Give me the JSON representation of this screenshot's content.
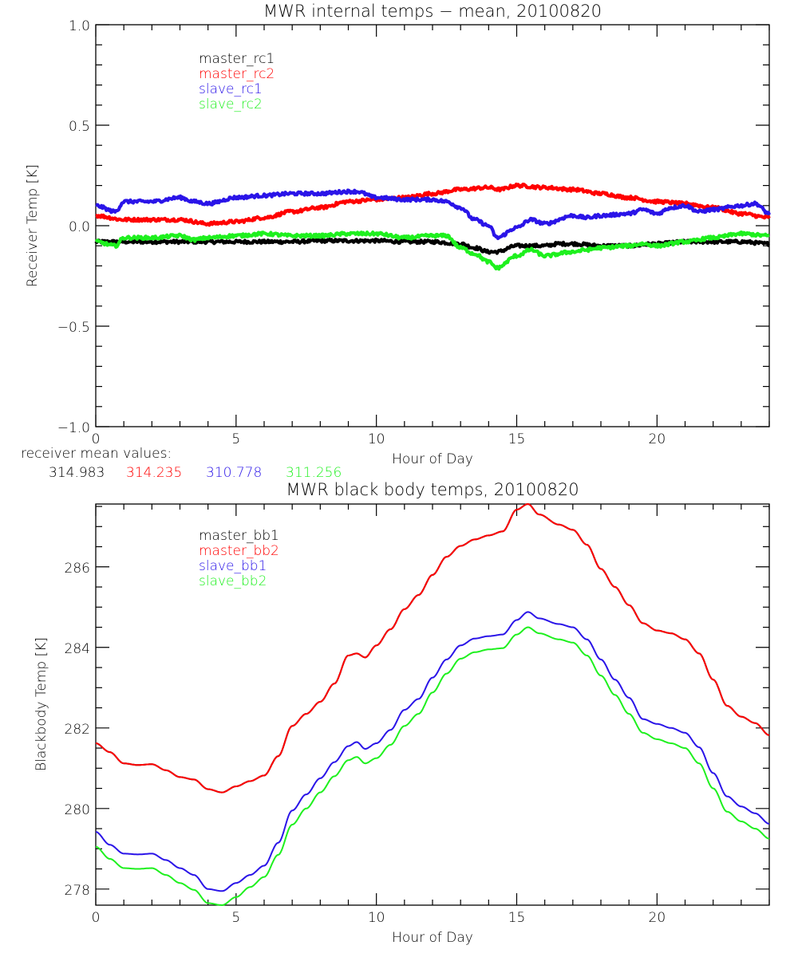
{
  "chart_data": [
    {
      "type": "line",
      "title": "MWR internal temps − mean, 20100820",
      "xlabel": "Hour of Day",
      "ylabel": "Receiver Temp [K]",
      "xlim": [
        0,
        24
      ],
      "ylim": [
        -1.0,
        1.0
      ],
      "xticks": [
        "0",
        "5",
        "10",
        "15",
        "20"
      ],
      "xtick_values": [
        0,
        5,
        10,
        15,
        20
      ],
      "yticks": [
        "−1.0",
        "−0.5",
        "0.0",
        "0.5",
        "1.0"
      ],
      "ytick_values": [
        -1.0,
        -0.5,
        0.0,
        0.5,
        1.0
      ],
      "grid": false,
      "legend_position": "top-left",
      "noise": 0.008,
      "series": [
        {
          "name": "master_rc1",
          "color": "#000000",
          "x": [
            0,
            1,
            2,
            3,
            4,
            5,
            6,
            7,
            8,
            9,
            10,
            11,
            12,
            13,
            13.5,
            14,
            14.3,
            15,
            16,
            16.5,
            17,
            18,
            19,
            20,
            21,
            22,
            23,
            24
          ],
          "y": [
            -0.08,
            -0.08,
            -0.08,
            -0.08,
            -0.08,
            -0.08,
            -0.08,
            -0.08,
            -0.075,
            -0.075,
            -0.075,
            -0.08,
            -0.08,
            -0.09,
            -0.11,
            -0.13,
            -0.13,
            -0.1,
            -0.1,
            -0.09,
            -0.09,
            -0.1,
            -0.1,
            -0.09,
            -0.08,
            -0.08,
            -0.08,
            -0.09
          ]
        },
        {
          "name": "master_rc2",
          "color": "#ff0000",
          "x": [
            0,
            1,
            2,
            3,
            4,
            5,
            6,
            7,
            8,
            9,
            10,
            11,
            12,
            13,
            14,
            14.4,
            15,
            16,
            17,
            18,
            19,
            20,
            21,
            22,
            23,
            24
          ],
          "y": [
            0.05,
            0.03,
            0.03,
            0.03,
            0.01,
            0.02,
            0.04,
            0.07,
            0.09,
            0.12,
            0.13,
            0.14,
            0.16,
            0.18,
            0.19,
            0.18,
            0.2,
            0.19,
            0.18,
            0.16,
            0.14,
            0.12,
            0.11,
            0.09,
            0.06,
            0.04
          ]
        },
        {
          "name": "slave_rc1",
          "color": "#2a14e8",
          "x": [
            0,
            0.7,
            1,
            2,
            3,
            3.5,
            4,
            5,
            6,
            7,
            8,
            9,
            9.3,
            10,
            11,
            12,
            12.5,
            13,
            13.5,
            14,
            14.3,
            15,
            15.5,
            16,
            17,
            17.5,
            18,
            19,
            19.5,
            20,
            20.5,
            21,
            21.5,
            22,
            23,
            23.5,
            24
          ],
          "y": [
            0.1,
            0.07,
            0.12,
            0.12,
            0.14,
            0.12,
            0.11,
            0.14,
            0.15,
            0.16,
            0.16,
            0.17,
            0.17,
            0.14,
            0.13,
            0.13,
            0.12,
            0.09,
            0.03,
            0.0,
            -0.06,
            -0.01,
            0.03,
            0.01,
            0.05,
            0.04,
            0.05,
            0.06,
            0.08,
            0.06,
            0.09,
            0.1,
            0.07,
            0.08,
            0.1,
            0.11,
            0.06
          ]
        },
        {
          "name": "slave_rc2",
          "color": "#1ef01e",
          "x": [
            0,
            0.7,
            1,
            2,
            3,
            3.5,
            4,
            5,
            6,
            7,
            8,
            9,
            10,
            11,
            12,
            12.5,
            13,
            13.5,
            14,
            14.3,
            15,
            15.5,
            16,
            17,
            17.5,
            18,
            19,
            19.5,
            20,
            21,
            22,
            23,
            24
          ],
          "y": [
            -0.08,
            -0.1,
            -0.06,
            -0.06,
            -0.05,
            -0.07,
            -0.06,
            -0.05,
            -0.04,
            -0.05,
            -0.05,
            -0.04,
            -0.04,
            -0.06,
            -0.05,
            -0.05,
            -0.11,
            -0.14,
            -0.18,
            -0.21,
            -0.15,
            -0.12,
            -0.15,
            -0.13,
            -0.12,
            -0.11,
            -0.1,
            -0.09,
            -0.1,
            -0.08,
            -0.06,
            -0.04,
            -0.05
          ]
        }
      ],
      "footer": {
        "label": "receiver mean values:",
        "values": [
          {
            "value": "314.983",
            "color": "#000000"
          },
          {
            "value": "314.235",
            "color": "#ff0000"
          },
          {
            "value": "310.778",
            "color": "#2a14e8"
          },
          {
            "value": "311.256",
            "color": "#1ef01e"
          }
        ]
      }
    },
    {
      "type": "line",
      "title": "MWR black body temps, 20100820",
      "xlabel": "Hour of Day",
      "ylabel": "Blackbody Temp [K]",
      "xlim": [
        0,
        24
      ],
      "ylim": [
        277.6,
        287.56
      ],
      "xticks": [
        "0",
        "5",
        "10",
        "15",
        "20"
      ],
      "xtick_values": [
        0,
        5,
        10,
        15,
        20
      ],
      "yticks": [
        "278",
        "280",
        "282",
        "284",
        "286"
      ],
      "ytick_values": [
        278,
        280,
        282,
        284,
        286
      ],
      "grid": false,
      "legend_position": "top-left",
      "noise": 0,
      "series": [
        {
          "name": "master_bb1",
          "color": "#000000",
          "x": [
            0,
            0.5,
            1,
            1.5,
            2,
            2.5,
            3,
            3.5,
            4,
            4.5,
            5,
            5.5,
            6,
            6.5,
            7,
            7.5,
            8,
            8.5,
            9,
            9.3,
            9.6,
            10,
            10.5,
            11,
            11.5,
            12,
            12.5,
            13,
            13.5,
            14,
            14.5,
            15,
            15.4,
            15.8,
            16.5,
            17,
            17.5,
            18,
            18.5,
            19,
            19.5,
            20,
            20.5,
            21,
            21.5,
            22,
            22.5,
            23,
            23.5,
            24
          ],
          "y": [
            281.62,
            281.4,
            281.12,
            281.08,
            281.1,
            280.95,
            280.78,
            280.72,
            280.48,
            280.4,
            280.55,
            280.68,
            280.82,
            281.3,
            282.05,
            282.35,
            282.65,
            283.1,
            283.8,
            283.85,
            283.75,
            284.05,
            284.45,
            284.95,
            285.3,
            285.8,
            286.25,
            286.52,
            286.68,
            286.78,
            286.88,
            287.42,
            287.56,
            287.3,
            287.05,
            286.92,
            286.55,
            285.95,
            285.5,
            285.05,
            284.6,
            284.42,
            284.35,
            284.2,
            283.85,
            283.2,
            282.55,
            282.28,
            282.12,
            281.82
          ]
        },
        {
          "name": "master_bb2",
          "color": "#ff0000",
          "x": [
            0,
            0.5,
            1,
            1.5,
            2,
            2.5,
            3,
            3.5,
            4,
            4.5,
            5,
            5.5,
            6,
            6.5,
            7,
            7.5,
            8,
            8.5,
            9,
            9.3,
            9.6,
            10,
            10.5,
            11,
            11.5,
            12,
            12.5,
            13,
            13.5,
            14,
            14.5,
            15,
            15.4,
            15.8,
            16.5,
            17,
            17.5,
            18,
            18.5,
            19,
            19.5,
            20,
            20.5,
            21,
            21.5,
            22,
            22.5,
            23,
            23.5,
            24
          ],
          "y": [
            281.62,
            281.4,
            281.12,
            281.08,
            281.1,
            280.95,
            280.78,
            280.72,
            280.48,
            280.4,
            280.55,
            280.68,
            280.82,
            281.3,
            282.05,
            282.35,
            282.65,
            283.1,
            283.8,
            283.85,
            283.75,
            284.05,
            284.45,
            284.95,
            285.3,
            285.8,
            286.25,
            286.52,
            286.68,
            286.78,
            286.88,
            287.42,
            287.56,
            287.3,
            287.05,
            286.92,
            286.55,
            285.95,
            285.5,
            285.05,
            284.6,
            284.42,
            284.35,
            284.2,
            283.85,
            283.2,
            282.55,
            282.28,
            282.12,
            281.82
          ]
        },
        {
          "name": "slave_bb1",
          "color": "#2a14e8",
          "x": [
            0,
            0.5,
            1,
            1.5,
            2,
            2.5,
            3,
            3.5,
            4,
            4.5,
            5,
            5.5,
            6,
            6.5,
            7,
            7.5,
            8,
            8.5,
            9,
            9.3,
            9.6,
            10,
            10.5,
            11,
            11.5,
            12,
            12.5,
            13,
            13.5,
            14,
            14.5,
            15,
            15.4,
            15.8,
            16.5,
            17,
            17.5,
            18,
            18.5,
            19,
            19.5,
            20,
            20.5,
            21,
            21.5,
            22,
            22.5,
            23,
            23.5,
            24
          ],
          "y": [
            279.42,
            279.1,
            278.88,
            278.86,
            278.88,
            278.72,
            278.52,
            278.35,
            278.0,
            277.95,
            278.15,
            278.35,
            278.58,
            279.15,
            279.95,
            280.35,
            280.75,
            281.15,
            281.55,
            281.65,
            281.48,
            281.62,
            281.95,
            282.45,
            282.72,
            283.25,
            283.7,
            284.05,
            284.22,
            284.28,
            284.32,
            284.68,
            284.88,
            284.72,
            284.58,
            284.5,
            284.2,
            283.7,
            283.2,
            282.75,
            282.22,
            282.1,
            282.0,
            281.88,
            281.52,
            280.88,
            280.3,
            280.05,
            279.88,
            279.62
          ]
        },
        {
          "name": "slave_bb2",
          "color": "#1ef01e",
          "x": [
            0,
            0.5,
            1,
            1.5,
            2,
            2.5,
            3,
            3.5,
            4,
            4.5,
            5,
            5.5,
            6,
            6.5,
            7,
            7.5,
            8,
            8.5,
            9,
            9.3,
            9.6,
            10,
            10.5,
            11,
            11.5,
            12,
            12.5,
            13,
            13.5,
            14,
            14.5,
            15,
            15.4,
            15.8,
            16.5,
            17,
            17.5,
            18,
            18.5,
            19,
            19.5,
            20,
            20.5,
            21,
            21.5,
            22,
            22.5,
            23,
            23.5,
            24
          ],
          "y": [
            279.05,
            278.75,
            278.52,
            278.5,
            278.52,
            278.35,
            278.15,
            277.98,
            277.65,
            277.6,
            277.8,
            278.05,
            278.3,
            278.85,
            279.6,
            280.0,
            280.4,
            280.8,
            281.2,
            281.28,
            281.12,
            281.25,
            281.58,
            282.05,
            282.35,
            282.88,
            283.35,
            283.72,
            283.88,
            283.95,
            283.98,
            284.32,
            284.5,
            284.35,
            284.2,
            284.12,
            283.8,
            283.3,
            282.82,
            282.35,
            281.88,
            281.72,
            281.62,
            281.5,
            281.12,
            280.5,
            279.92,
            279.68,
            279.5,
            279.25
          ]
        }
      ]
    }
  ]
}
